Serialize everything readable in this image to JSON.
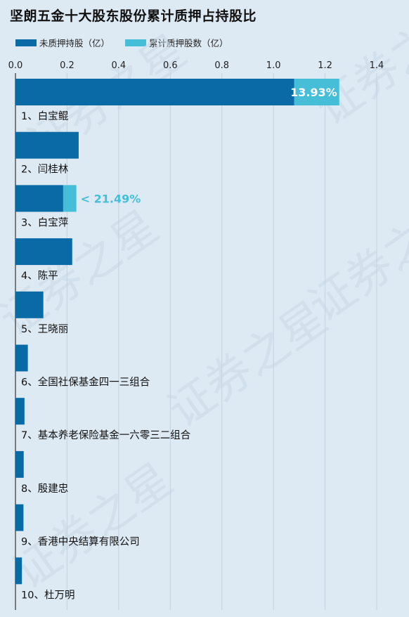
{
  "title": "坚朗五金十大股东股份累计质押占持股比",
  "watermark": "证券之星",
  "legend": [
    {
      "name": "未质押持股（亿）",
      "color": "#0a6aa6"
    },
    {
      "name": "累计质押股数（亿）",
      "color": "#47bed8"
    }
  ],
  "chart_data": {
    "type": "bar",
    "orientation": "horizontal",
    "stacked": true,
    "xlim": [
      0,
      1.4
    ],
    "x_ticks": [
      "0.0",
      "0.2",
      "0.4",
      "0.6",
      "0.8",
      "1.0",
      "1.2",
      "1.4"
    ],
    "grid": true,
    "legend_position": "top-left",
    "categories": [
      "1、白宝鲲",
      "2、闫桂林",
      "3、白宝萍",
      "4、陈平",
      "5、王晓丽",
      "6、全国社保基金四一三组合",
      "7、基本养老保险基金一六零三二组合",
      "8、殷建忠",
      "9、香港中央结算有限公司",
      "10、杜万明"
    ],
    "series": [
      {
        "name": "未质押持股（亿）",
        "color": "#0a6aa6",
        "values": [
          1.08,
          0.245,
          0.185,
          0.22,
          0.108,
          0.048,
          0.035,
          0.032,
          0.031,
          0.025
        ]
      },
      {
        "name": "累计质押股数（亿）",
        "color": "#47bed8",
        "values": [
          0.175,
          0,
          0.051,
          0,
          0,
          0,
          0,
          0,
          0,
          0
        ]
      }
    ],
    "annotations": [
      {
        "category_index": 0,
        "text": "13.93%",
        "placement": "inside",
        "color": "#ffffff"
      },
      {
        "category_index": 2,
        "text": "< 21.49%",
        "placement": "outside",
        "color": "#47bed8"
      }
    ]
  }
}
